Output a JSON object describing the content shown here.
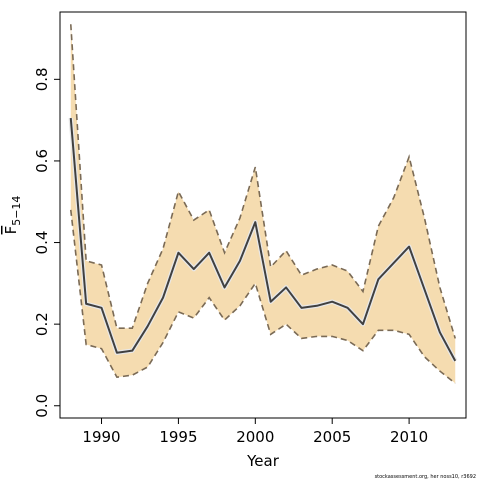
{
  "chart_data": {
    "type": "line",
    "title": "",
    "xlabel": "Year",
    "ylabel_main": "F",
    "ylabel_sub": "5−14",
    "xlim": [
      1987.3,
      2013.7
    ],
    "ylim": [
      -0.03,
      0.965
    ],
    "xticks": [
      1990,
      1995,
      2000,
      2005,
      2010
    ],
    "yticks": [
      0.0,
      0.2,
      0.4,
      0.6,
      0.8
    ],
    "ytick_labels": [
      "0.0",
      "0.2",
      "0.4",
      "0.6",
      "0.8"
    ],
    "grid": false,
    "colors": {
      "band_fill": "#f5dcb0",
      "band_edge": "#7a6a55",
      "line": "#404040",
      "line_halo": "#e8e8e8"
    },
    "x": [
      1988,
      1989,
      1990,
      1991,
      1992,
      1993,
      1994,
      1995,
      1996,
      1997,
      1998,
      1999,
      2000,
      2001,
      2002,
      2003,
      2004,
      2005,
      2006,
      2007,
      2008,
      2009,
      2010,
      2011,
      2012,
      2013
    ],
    "series": [
      {
        "values": [
          0.705,
          0.25,
          0.24,
          0.13,
          0.135,
          0.195,
          0.265,
          0.375,
          0.335,
          0.375,
          0.29,
          0.355,
          0.45,
          0.255,
          0.29,
          0.24,
          0.245,
          0.255,
          0.24,
          0.2,
          0.31,
          0.35,
          0.39,
          0.285,
          0.18,
          0.11
        ]
      }
    ],
    "band_upper": [
      0.935,
      0.355,
      0.345,
      0.19,
      0.19,
      0.3,
      0.385,
      0.525,
      0.455,
      0.48,
      0.375,
      0.46,
      0.585,
      0.34,
      0.38,
      0.32,
      0.335,
      0.345,
      0.33,
      0.28,
      0.44,
      0.51,
      0.61,
      0.46,
      0.29,
      0.165
    ],
    "band_lower": [
      0.48,
      0.15,
      0.14,
      0.07,
      0.075,
      0.095,
      0.155,
      0.23,
      0.215,
      0.265,
      0.21,
      0.245,
      0.3,
      0.175,
      0.2,
      0.165,
      0.17,
      0.17,
      0.16,
      0.135,
      0.185,
      0.185,
      0.175,
      0.12,
      0.085,
      0.055
    ]
  },
  "credit": "stockassessment.org, her noss10, r3692"
}
